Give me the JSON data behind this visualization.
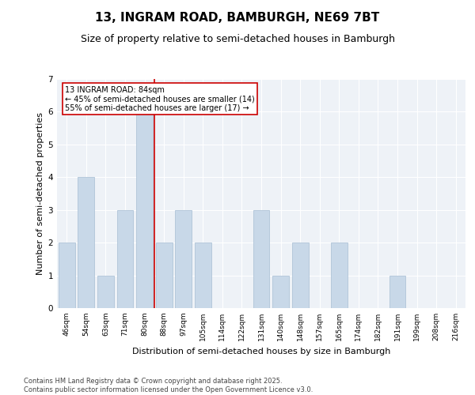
{
  "title1": "13, INGRAM ROAD, BAMBURGH, NE69 7BT",
  "title2": "Size of property relative to semi-detached houses in Bamburgh",
  "xlabel": "Distribution of semi-detached houses by size in Bamburgh",
  "ylabel": "Number of semi-detached properties",
  "categories": [
    "46sqm",
    "54sqm",
    "63sqm",
    "71sqm",
    "80sqm",
    "88sqm",
    "97sqm",
    "105sqm",
    "114sqm",
    "122sqm",
    "131sqm",
    "140sqm",
    "148sqm",
    "157sqm",
    "165sqm",
    "174sqm",
    "182sqm",
    "191sqm",
    "199sqm",
    "208sqm",
    "216sqm"
  ],
  "values": [
    2,
    4,
    1,
    3,
    6,
    2,
    3,
    2,
    0,
    0,
    3,
    1,
    2,
    0,
    2,
    0,
    0,
    1,
    0,
    0,
    0
  ],
  "bar_color": "#c8d8e8",
  "bar_edge_color": "#b0c4d8",
  "vline_index": 4,
  "vline_color": "#cc0000",
  "annotation_line1": "13 INGRAM ROAD: 84sqm",
  "annotation_line2": "← 45% of semi-detached houses are smaller (14)",
  "annotation_line3": "55% of semi-detached houses are larger (17) →",
  "annotation_box_color": "#ffffff",
  "annotation_box_edge": "#cc0000",
  "footer_text": "Contains HM Land Registry data © Crown copyright and database right 2025.\nContains public sector information licensed under the Open Government Licence v3.0.",
  "ylim": [
    0,
    7
  ],
  "yticks": [
    0,
    1,
    2,
    3,
    4,
    5,
    6,
    7
  ],
  "background_color": "#eef2f7",
  "grid_color": "#ffffff",
  "title1_fontsize": 11,
  "title2_fontsize": 9,
  "axis_label_fontsize": 8,
  "tick_fontsize": 6.5,
  "annotation_fontsize": 7,
  "footer_fontsize": 6
}
